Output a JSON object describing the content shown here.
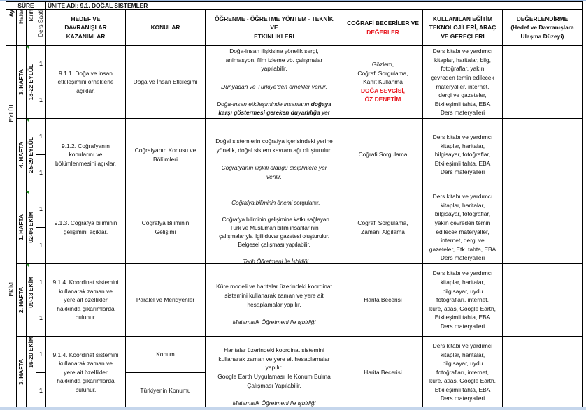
{
  "header": {
    "sure": "SÜRE",
    "unit_title": "ÜNİTE ADI: 9.1. DOĞAL SİSTEMLER",
    "col_ay": "Ay",
    "col_hafta": "Hafta",
    "col_tarih": "Tarih",
    "col_ders_saati": "Ders Saati",
    "col_kazanimlar": "HEDEF VE\nDAVRANIŞLAR\nKAZANIMLAR",
    "col_konular": "KONULAR",
    "col_yontem": "ÖĞRENME - ÖĞRETME YÖNTEM - TEKNİK\nVE\nETKİNLİKLERİ",
    "col_beceriler": "COĞRAFİ BECERİLER VE",
    "col_degerler": "DEĞERLER",
    "col_arac": "KULLANILAN EĞİTİM\nTEKNOLOJİLERİ, ARAÇ\nVE GEREÇLERİ",
    "col_degerlendirme": "DEĞERLENDİRME\n(Hedef ve Davranışlara\nUlaşma Düzeyi)"
  },
  "months": [
    "EYLÜL",
    "EKİM"
  ],
  "rows": [
    {
      "hafta": "3. HAFTA",
      "tarih": "18-22 EYLÜL",
      "saat": [
        "1",
        "1"
      ],
      "kazanim": "9.1.1. Doğa ve insan\netkileşimini örneklerle\naçıklar.",
      "konu": "Doğa ve İnsan Etkileşimi",
      "yontem_normal": "Doğa-insan ilişkisine yönelik sergi,\nanimasyon, film izleme vb. çalışmalar\nyapılabilir.",
      "yontem_italic1": "Dünyadan ve Türkiye'den örnekler verilir.",
      "yontem_italic2a": "Doğa-insan etkileşiminde insanların",
      "yontem_bold": "doğaya\nkarşı göstermesi gereken duyarlılığa",
      "yontem_italic2b": "yer\nverilir.",
      "beceri": "Gözlem,\nCoğrafi Sorgulama,\nKanıt Kullanma",
      "deger": "DOĞA SEVGİSİ,\nÖZ DENETİM",
      "arac": "Ders kitabı ve yardımcı\nkitaplar, haritalar,  bilg,\nfotoğraflar, yakın\nçevreden temin edilecek\nmateryaller, internet,\ndergi ve gazeteler,\nEtkileşimli tahta, EBA\nDers materyalleri",
      "degerlendirme": ""
    },
    {
      "hafta": "4. HAFTA",
      "tarih": "25-29 EYLÜL",
      "saat": [
        "1",
        "1"
      ],
      "kazanim": "9.1.2. Coğrafyanın\nkonularını ve\nbölümlenmesini açıklar.",
      "konu": "Coğrafyanın Konusu ve\nBölümleri",
      "yontem_normal": "Doğal sistemlerin coğrafya içerisindeki yerine\nyönelik, doğal sistem kavram ağı oluşturulur.",
      "yontem_italic1": "Coğrafyanın ilişkili olduğu disiplinlere yer\nverilir.",
      "beceri": "Coğrafi Sorgulama",
      "arac": "Ders kitabı ve yardımcı\nkitaplar, haritalar,\nbilgisayar, fotoğraflar,\nEtkileşimli tahta, EBA\nDers materyalleri",
      "degerlendirme": ""
    },
    {
      "hafta": "1. HAFTA",
      "tarih": "02-06 EKİM",
      "saat": [
        "1",
        "1"
      ],
      "kazanim": "9.1.3. Coğrafya biliminin\ngelişimini açıklar.",
      "konu": "Coğrafya Biliminin\nGelişimi",
      "yontem_italic0": "Coğrafya biliminin önemi",
      "yontem_normal0": " sorgulanır.",
      "yontem_normal": "Coğrafya biliminin gelişimine katkı sağlayan\nTürk ve Müslüman bilim insanlarının\nçalışmalarıyla ilgili duvar gazetesi oluşturulur.\nBelgesel çalışması yapılabilir.",
      "yontem_italic1": "Tarih Öğretmeni İle İşbirliği",
      "beceri": "Coğrafi Sorgulama,\nZamanı Algılama",
      "arac": "Ders kitabı ve yardımcı\nkitaplar, haritalar,\nbilgisayar, fotoğraflar,\nyakın çevreden temin\nedilecek materyaller,\ninternet, dergi ve\ngazeteler, Etk. tahta, EBA\nDers materyalleri",
      "degerlendirme": ""
    },
    {
      "hafta": "2. HAFTA",
      "tarih": "09-13 EKİM",
      "saat": [
        "1",
        "1"
      ],
      "kazanim": "9.1.4. Koordinat sistemini\nkullanarak zaman ve\nyere ait özellikler\nhakkında çıkarımlarda\nbulunur.",
      "konu": "Paralel ve Meridyenler",
      "yontem_normal": "Küre modeli ve haritalar üzerindeki koordinat\nsistemini kullanarak zaman ve yere ait\nhesaplamalar yapılır.",
      "yontem_italic1": "Matematik Öğretmeni ile işbirliği",
      "beceri": "Harita Becerisi",
      "arac": "Ders kitabı ve yardımcı\nkitaplar, haritalar,\nbilgisayar, uydu\nfotoğrafları, internet,\nküre, atlas, Google Earth,\nEtkileşimli tahta, EBA\nDers materyalleri",
      "degerlendirme": ""
    },
    {
      "hafta": "3. HAFTA",
      "tarih": "16-20 EKİM",
      "saat": [
        "1",
        "1"
      ],
      "kazanim": "9.1.4. Koordinat sistemini\nkullanarak zaman ve\nyere ait özellikler\nhakkında çıkarımlarda\nbulunur.",
      "konu": [
        "Konum",
        "Türkiyenin Konumu"
      ],
      "yontem_normal": "Haritalar üzerindeki koordinat sistemini\nkullanarak zaman ve yere ait hesaplamalar\nyapılır.\nGoogle Earth Uygulaması ile Konum Bulma\nÇalışması Yapılabilir.",
      "yontem_italic1": "Matematik Öğretmeni ile işbirliği",
      "beceri": "Harita Becerisi",
      "arac": "Ders kitabı ve yardımcı\nkitaplar, haritalar,\nbilgisayar, uydu\nfotoğrafları, internet,\nküre, atlas, Google Earth,\nEtkileşimli tahta, EBA\nDers materyalleri",
      "degerlendirme": ""
    }
  ]
}
